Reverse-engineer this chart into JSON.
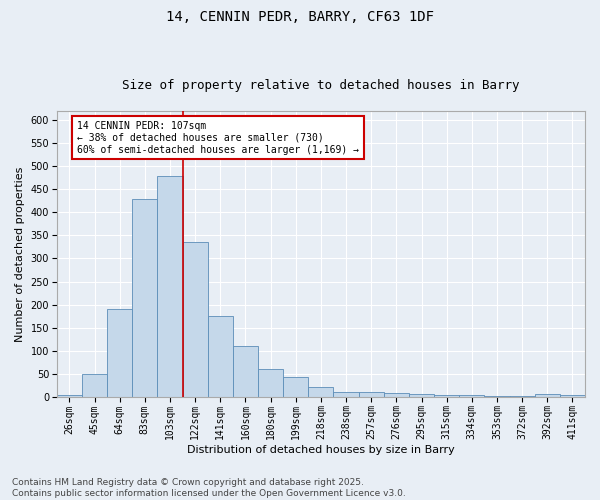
{
  "title1": "14, CENNIN PEDR, BARRY, CF63 1DF",
  "title2": "Size of property relative to detached houses in Barry",
  "xlabel": "Distribution of detached houses by size in Barry",
  "ylabel": "Number of detached properties",
  "categories": [
    "26sqm",
    "45sqm",
    "64sqm",
    "83sqm",
    "103sqm",
    "122sqm",
    "141sqm",
    "160sqm",
    "180sqm",
    "199sqm",
    "218sqm",
    "238sqm",
    "257sqm",
    "276sqm",
    "295sqm",
    "315sqm",
    "334sqm",
    "353sqm",
    "372sqm",
    "392sqm",
    "411sqm"
  ],
  "values": [
    3,
    50,
    190,
    430,
    480,
    335,
    175,
    110,
    60,
    43,
    21,
    10,
    10,
    7,
    6,
    3,
    3,
    2,
    2,
    5,
    3
  ],
  "bar_color": "#c5d8ea",
  "bar_edge_color": "#5b8db8",
  "vline_x_index": 4.5,
  "vline_color": "#cc0000",
  "annotation_text": "14 CENNIN PEDR: 107sqm\n← 38% of detached houses are smaller (730)\n60% of semi-detached houses are larger (1,169) →",
  "annotation_box_color": "#ffffff",
  "annotation_box_edge_color": "#cc0000",
  "ylim": [
    0,
    620
  ],
  "yticks": [
    0,
    50,
    100,
    150,
    200,
    250,
    300,
    350,
    400,
    450,
    500,
    550,
    600
  ],
  "footnote": "Contains HM Land Registry data © Crown copyright and database right 2025.\nContains public sector information licensed under the Open Government Licence v3.0.",
  "background_color": "#e8eef5",
  "plot_background_color": "#e8eef5",
  "grid_color": "#ffffff",
  "title1_fontsize": 10,
  "title2_fontsize": 9,
  "axis_label_fontsize": 8,
  "tick_fontsize": 7,
  "annotation_fontsize": 7,
  "footnote_fontsize": 6.5
}
